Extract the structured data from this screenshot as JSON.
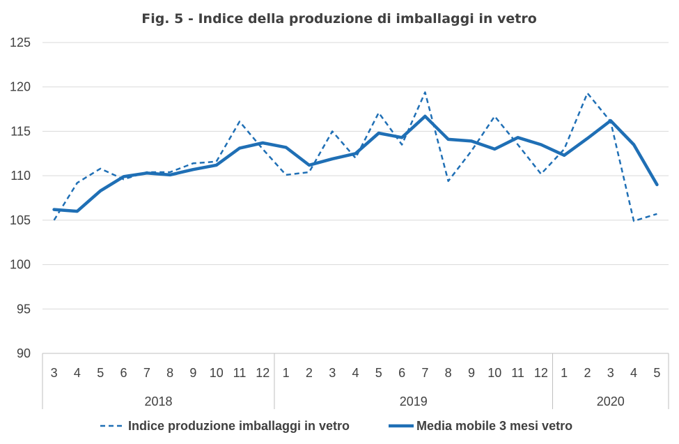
{
  "chart_data": {
    "type": "line",
    "title": "Fig. 5 - Indice della produzione di imballaggi in vetro",
    "xlabel": "",
    "ylabel": "",
    "ylim": [
      90,
      125
    ],
    "yticks": [
      "90",
      "95",
      "100",
      "105",
      "110",
      "115",
      "120",
      "125"
    ],
    "months": [
      "3",
      "4",
      "5",
      "6",
      "7",
      "8",
      "9",
      "10",
      "11",
      "12",
      "1",
      "2",
      "3",
      "4",
      "5",
      "6",
      "7",
      "8",
      "9",
      "10",
      "11",
      "12",
      "1",
      "2",
      "3",
      "4",
      "5"
    ],
    "years": [
      {
        "label": "2018",
        "start": 0,
        "count": 10
      },
      {
        "label": "2019",
        "start": 10,
        "count": 12
      },
      {
        "label": "2020",
        "start": 22,
        "count": 5
      }
    ],
    "grid": "horizontal",
    "legend_position": "bottom",
    "series": [
      {
        "name": "Indice produzione imballaggi in vetro",
        "style": "dashed",
        "color": "#1f6fb5",
        "values": [
          105.0,
          109.2,
          110.8,
          109.6,
          110.4,
          110.4,
          111.4,
          111.6,
          116.1,
          113.0,
          110.1,
          110.4,
          115.0,
          112.0,
          117.1,
          113.5,
          119.4,
          109.4,
          112.8,
          116.7,
          113.5,
          110.2,
          113.0,
          119.3,
          116.1,
          104.9,
          105.7
        ]
      },
      {
        "name": "Media mobile 3 mesi vetro",
        "style": "solid",
        "color": "#1f6fb5",
        "values": [
          106.2,
          106.0,
          108.3,
          109.9,
          110.3,
          110.1,
          110.7,
          111.2,
          113.1,
          113.7,
          113.2,
          111.2,
          111.9,
          112.5,
          114.8,
          114.3,
          116.7,
          114.1,
          113.9,
          113.0,
          114.3,
          113.5,
          112.3,
          114.2,
          116.2,
          113.5,
          109.0
        ]
      }
    ]
  }
}
